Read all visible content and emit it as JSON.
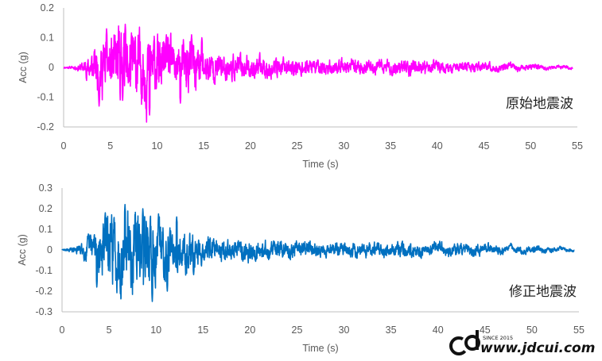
{
  "chart_data": [
    {
      "type": "line",
      "title": "",
      "annotation": "原始地震波",
      "xlabel": "Time (s)",
      "ylabel": "Acc (g)",
      "xlim": [
        0,
        55
      ],
      "ylim": [
        -0.2,
        0.2
      ],
      "x_ticks": [
        "0",
        "5",
        "10",
        "15",
        "20",
        "25",
        "30",
        "35",
        "40",
        "45",
        "50",
        "55"
      ],
      "y_ticks": [
        "0.2",
        "0.1",
        "0",
        "-0.1",
        "-0.2"
      ],
      "color": "#ff00ff",
      "grid": false,
      "duration": 54.5,
      "envelope": [
        [
          0,
          0.003
        ],
        [
          1,
          0.005
        ],
        [
          2,
          0.018
        ],
        [
          3,
          0.055
        ],
        [
          4,
          0.105
        ],
        [
          5,
          0.11
        ],
        [
          6,
          0.13
        ],
        [
          7,
          0.125
        ],
        [
          8,
          0.12
        ],
        [
          9,
          0.14
        ],
        [
          10,
          0.105
        ],
        [
          11,
          0.1
        ],
        [
          12,
          0.08
        ],
        [
          13,
          0.09
        ],
        [
          14,
          0.1
        ],
        [
          15,
          0.06
        ],
        [
          17,
          0.045
        ],
        [
          20,
          0.04
        ],
        [
          25,
          0.03
        ],
        [
          30,
          0.025
        ],
        [
          35,
          0.025
        ],
        [
          37,
          0.03
        ],
        [
          40,
          0.02
        ],
        [
          45,
          0.015
        ],
        [
          50,
          0.01
        ],
        [
          52,
          0.007
        ],
        [
          54.5,
          0.004
        ]
      ],
      "peaks": [
        [
          3.8,
          -0.13
        ],
        [
          4.6,
          0.13
        ],
        [
          6.6,
          0.145
        ],
        [
          9.2,
          -0.16
        ],
        [
          11.0,
          0.11
        ],
        [
          12.5,
          -0.12
        ],
        [
          13.7,
          0.11
        ],
        [
          14.8,
          0.1
        ]
      ]
    },
    {
      "type": "line",
      "title": "",
      "annotation": "修正地震波",
      "xlabel": "Time (s)",
      "ylabel": "Acc (g)",
      "xlim": [
        0,
        55
      ],
      "ylim": [
        -0.3,
        0.3
      ],
      "x_ticks": [
        "0",
        "5",
        "10",
        "15",
        "20",
        "25",
        "30",
        "35",
        "40",
        "45",
        "50",
        "55"
      ],
      "y_ticks": [
        "0.3",
        "0.2",
        "0.1",
        "0",
        "-0.1",
        "-0.2",
        "-0.3"
      ],
      "color": "#0070c0",
      "grid": false,
      "duration": 54.5,
      "envelope": [
        [
          0,
          0.003
        ],
        [
          1,
          0.01
        ],
        [
          2,
          0.03
        ],
        [
          3,
          0.08
        ],
        [
          4,
          0.15
        ],
        [
          5,
          0.17
        ],
        [
          6,
          0.2
        ],
        [
          7,
          0.19
        ],
        [
          8,
          0.18
        ],
        [
          9,
          0.2
        ],
        [
          10,
          0.16
        ],
        [
          11,
          0.13
        ],
        [
          12,
          0.1
        ],
        [
          13,
          0.1
        ],
        [
          14,
          0.09
        ],
        [
          15,
          0.07
        ],
        [
          17,
          0.055
        ],
        [
          20,
          0.05
        ],
        [
          25,
          0.04
        ],
        [
          30,
          0.035
        ],
        [
          35,
          0.035
        ],
        [
          37,
          0.04
        ],
        [
          40,
          0.03
        ],
        [
          42,
          0.035
        ],
        [
          45,
          0.025
        ],
        [
          48,
          0.02
        ],
        [
          50,
          0.018
        ],
        [
          54.5,
          0.008
        ]
      ],
      "peaks": [
        [
          3.7,
          -0.18
        ],
        [
          4.6,
          0.18
        ],
        [
          6.7,
          0.22
        ],
        [
          9.6,
          -0.25
        ],
        [
          8.6,
          0.2
        ],
        [
          11.2,
          -0.2
        ],
        [
          12.2,
          0.16
        ],
        [
          14.0,
          -0.12
        ]
      ]
    }
  ],
  "watermark": {
    "logo": "cd",
    "text": "www.jdcui.com",
    "since": "SINCE 2015"
  }
}
